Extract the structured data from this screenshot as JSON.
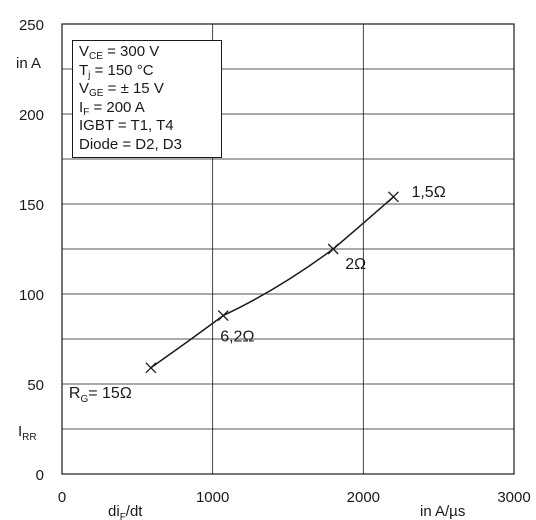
{
  "chart_data": {
    "type": "line",
    "x_label": "di_F/dt",
    "x_unit": "in A/µs",
    "y_label": "I_RR",
    "y_unit": "in A",
    "xlim": [
      0,
      3000
    ],
    "ylim": [
      0,
      250
    ],
    "x_ticks": [
      0,
      1000,
      2000,
      3000
    ],
    "y_ticks": [
      0,
      50,
      100,
      150,
      200,
      250
    ],
    "x_tick_labels": [
      "0",
      "1000",
      "2000",
      "3000"
    ],
    "y_tick_labels": [
      "0",
      "50",
      "100",
      "150",
      "200",
      "250"
    ],
    "grid": true,
    "series": [
      {
        "x": [
          590,
          1070,
          1800,
          2200
        ],
        "y": [
          59,
          88,
          125,
          154
        ],
        "marker": "x",
        "point_labels": [
          {
            "label": "R",
            "sub": "G",
            "suffix": "= 15Ω"
          },
          {
            "label": "6,2Ω",
            "sub": "",
            "suffix": ""
          },
          {
            "label": "2Ω",
            "sub": "",
            "suffix": ""
          },
          {
            "label": "1,5Ω",
            "sub": "",
            "suffix": ""
          }
        ]
      }
    ],
    "conditions": [
      {
        "pre": "V",
        "sub": "CE",
        "post": " = 300 V"
      },
      {
        "pre": "T",
        "sub": "j",
        "post": " = 150 °C"
      },
      {
        "pre": "V",
        "sub": "GE",
        "post": " = ± 15 V"
      },
      {
        "pre": " I",
        "sub": "F",
        "post": " = 200 A"
      },
      {
        "pre": "IGBT = T1, T4",
        "sub": "",
        "post": ""
      },
      {
        "pre": "Diode = D2, D3",
        "sub": "",
        "post": ""
      }
    ],
    "labels": {
      "y_unit_text": "in A",
      "y_label_main": "I",
      "y_label_sub": "RR",
      "x_label_main": "di",
      "x_label_sub": "F",
      "x_label_tail": "/dt",
      "x_unit_text": "in A/µs"
    }
  }
}
